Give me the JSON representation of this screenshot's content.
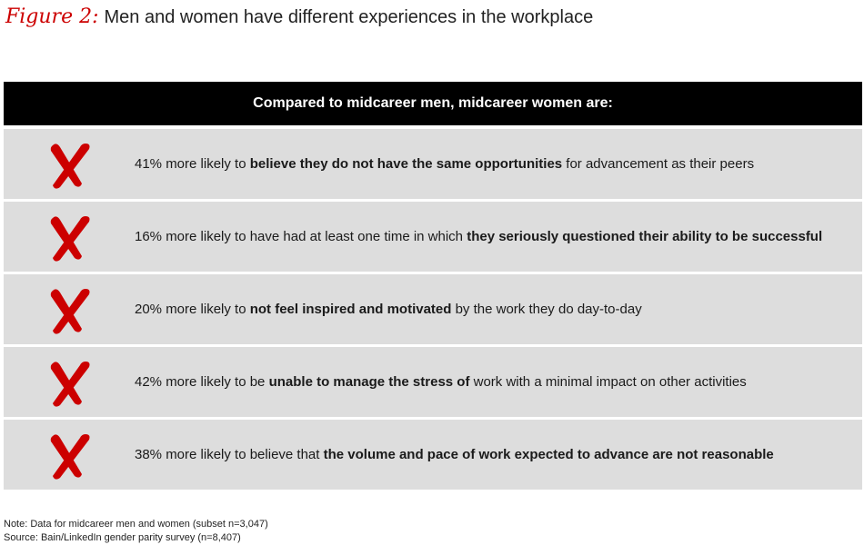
{
  "figure": {
    "label": "Figure 2:",
    "title": "Men and women have different experiences in the workplace"
  },
  "table": {
    "header": "Compared to midcareer men, midcareer women are:",
    "rows": [
      {
        "prefix": "41% more likely to ",
        "bold": "believe they do not have the same opportunities",
        "suffix": " for advancement as their peers"
      },
      {
        "prefix": "16% more likely to have had at least one time in which ",
        "bold": "they seriously questioned their ability to be successful",
        "suffix": ""
      },
      {
        "prefix": "20% more likely to ",
        "bold": "not feel inspired and motivated",
        "suffix": " by the work they do day-to-day"
      },
      {
        "prefix": "42% more likely to be ",
        "bold": "unable to manage the stress of",
        "suffix": " work with a minimal impact on other activities"
      },
      {
        "prefix": "38% more likely to believe that ",
        "bold": "the volume and pace of work expected to advance are not reasonable",
        "suffix": ""
      }
    ],
    "mark_icon": "red-x-icon",
    "mark_color": "#cc0000",
    "row_bg": "#dddddd",
    "header_bg": "#000000"
  },
  "notes": {
    "note": "Note: Data for midcareer men and women (subset n=3,047)",
    "source": "Source: Bain/LinkedIn gender parity survey (n=8,407)"
  }
}
